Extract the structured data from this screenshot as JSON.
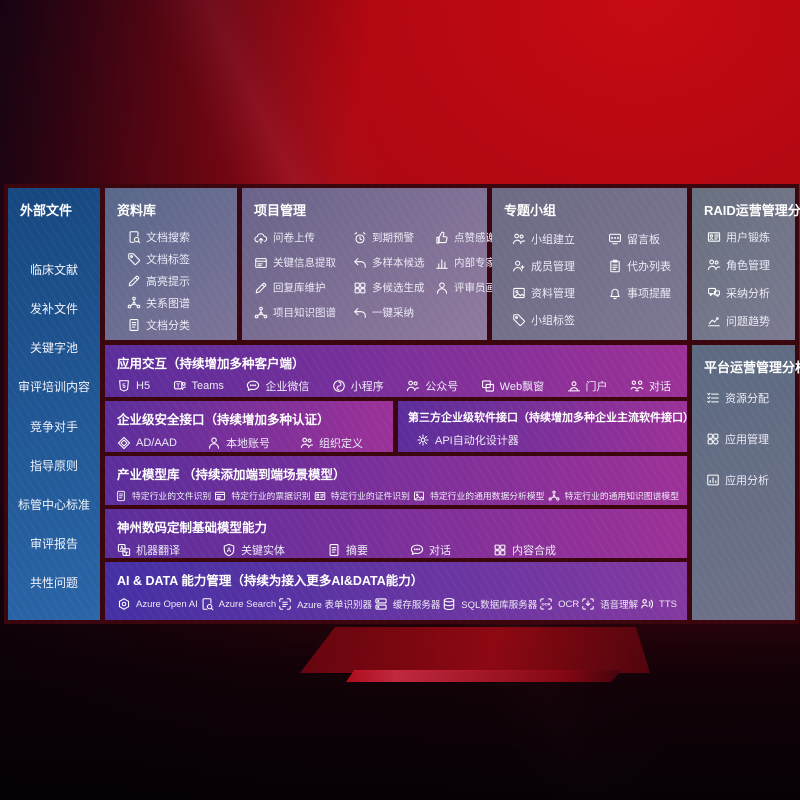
{
  "colors": {
    "background_red": "#b2070f",
    "sidebar_blue": "#1f5a9e",
    "panel_gray": "#6f6a87",
    "row_purple_left": "#5b2e9b",
    "row_purple_right": "#9c3198",
    "ai_row_left": "#4430a4",
    "text": "#ffffff"
  },
  "sidebar": {
    "title": "外部文件",
    "items": [
      {
        "label": "临床文献"
      },
      {
        "label": "发补文件"
      },
      {
        "label": "关键字池"
      },
      {
        "label": "审评培训内容"
      },
      {
        "label": "竞争对手"
      },
      {
        "label": "指导原则"
      },
      {
        "label": "标管中心标准"
      },
      {
        "label": "审评报告"
      },
      {
        "label": "共性问题"
      }
    ]
  },
  "repository": {
    "title": "资料库",
    "items": [
      {
        "icon": "doc-search",
        "label": "文档搜索"
      },
      {
        "icon": "tag",
        "label": "文档标签"
      },
      {
        "icon": "pencil",
        "label": "高亮提示"
      },
      {
        "icon": "graph",
        "label": "关系图谱"
      },
      {
        "icon": "doc",
        "label": "文档分类"
      }
    ]
  },
  "project": {
    "title": "项目管理",
    "items": [
      {
        "icon": "cloud-up",
        "label": "问卷上传"
      },
      {
        "icon": "alarm",
        "label": "到期预警"
      },
      {
        "icon": "thumbs-up",
        "label": "点赞感谢"
      },
      {
        "icon": "window-extract",
        "label": "关键信息提取"
      },
      {
        "icon": "reply-arrow",
        "label": "多样本候选"
      },
      {
        "icon": "bar-chart",
        "label": "内部专家排名"
      },
      {
        "icon": "pencil",
        "label": "回复库维护"
      },
      {
        "icon": "grid",
        "label": "多候选生成"
      },
      {
        "icon": "person",
        "label": "评审员画像"
      },
      {
        "icon": "graph",
        "label": "项目知识图谱"
      },
      {
        "icon": "reply-arrow",
        "label": "一键采纳"
      }
    ]
  },
  "groups": {
    "title": "专题小组",
    "items": [
      {
        "icon": "people",
        "label": "小组建立"
      },
      {
        "icon": "bbs",
        "label": "留言板"
      },
      {
        "icon": "person-plus",
        "label": "成员管理"
      },
      {
        "icon": "clipboard",
        "label": "代办列表"
      },
      {
        "icon": "photo",
        "label": "资料管理"
      },
      {
        "icon": "bell",
        "label": "事项提醒"
      },
      {
        "icon": "tag",
        "label": "小组标签"
      }
    ]
  },
  "raid": {
    "title": "RAID运营管理分析",
    "items": [
      {
        "icon": "id-card",
        "label": "用户锻炼"
      },
      {
        "icon": "people",
        "label": "角色管理"
      },
      {
        "icon": "qa-chat",
        "label": "采纳分析"
      },
      {
        "icon": "trend",
        "label": "问题趋势"
      }
    ]
  },
  "platform": {
    "title": "平台运营管理分析",
    "items": [
      {
        "icon": "list-check",
        "label": "资源分配"
      },
      {
        "icon": "apps",
        "label": "应用管理"
      },
      {
        "icon": "app-chart",
        "label": "应用分析"
      }
    ]
  },
  "interaction": {
    "title": "应用交互（持续增加多种客户端）",
    "items": [
      {
        "icon": "h5",
        "label": "H5"
      },
      {
        "icon": "teams",
        "label": "Teams"
      },
      {
        "icon": "chat-bubble",
        "label": "企业微信"
      },
      {
        "icon": "mini-program",
        "label": "小程序"
      },
      {
        "icon": "people",
        "label": "公众号"
      },
      {
        "icon": "web-window",
        "label": "Web飘窗"
      },
      {
        "icon": "portal",
        "label": "门户"
      },
      {
        "icon": "dialog-people",
        "label": "对话"
      }
    ]
  },
  "security": {
    "title": "企业级安全接口（持续增加多种认证）",
    "items": [
      {
        "icon": "diamond",
        "label": "AD/AAD"
      },
      {
        "icon": "person",
        "label": "本地账号"
      },
      {
        "icon": "people",
        "label": "组织定义"
      }
    ]
  },
  "thirdparty": {
    "title": "第三方企业级软件接口（持续增加多种企业主流软件接口）",
    "items": [
      {
        "icon": "gear",
        "label": "API自动化设计器"
      }
    ]
  },
  "models": {
    "title": "产业模型库 （持续添加端到端场景模型）",
    "items": [
      {
        "icon": "doc",
        "label": "特定行业的文件识别"
      },
      {
        "icon": "window-extract",
        "label": "特定行业的票据识别"
      },
      {
        "icon": "id-card",
        "label": "特定行业的证件识别"
      },
      {
        "icon": "photo",
        "label": "特定行业的通用数据分析模型"
      },
      {
        "icon": "graph",
        "label": "特定行业的通用知识图谱模型"
      }
    ]
  },
  "basemodel": {
    "title": "神州数码定制基础模型能力",
    "items": [
      {
        "icon": "translate",
        "label": "机器翻译"
      },
      {
        "icon": "shield-a",
        "label": "关键实体"
      },
      {
        "icon": "doc",
        "label": "摘要"
      },
      {
        "icon": "chat-bubble",
        "label": "对话"
      },
      {
        "icon": "grid",
        "label": "内容合成"
      }
    ]
  },
  "aidata": {
    "title": "AI & DATA 能力管理（持续为接入更多AI&DATA能力）",
    "items": [
      {
        "icon": "openai",
        "label": "Azure Open AI"
      },
      {
        "icon": "doc-search",
        "label": "Azure Search"
      },
      {
        "icon": "form-brackets",
        "label": "Azure 表单识别器"
      },
      {
        "icon": "server",
        "label": "缓存服务器"
      },
      {
        "icon": "database",
        "label": "SQL数据库服务器"
      },
      {
        "icon": "ocr",
        "label": "OCR"
      },
      {
        "icon": "speech",
        "label": "语音理解"
      },
      {
        "icon": "tts",
        "label": "TTS"
      }
    ]
  }
}
